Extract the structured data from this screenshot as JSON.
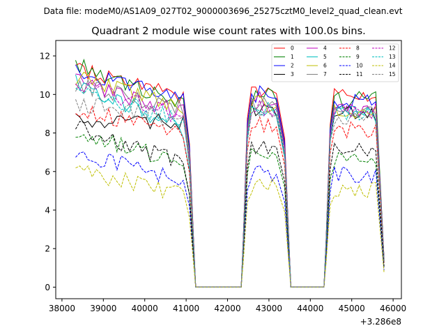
{
  "chart_data": {
    "type": "line",
    "suptitle": "Data file: modeM0/AS1A09_027T02_9000003696_25275cztM0_level2_quad_clean.evt",
    "title": "Quadrant 2 module wise count rates with 100.0s bins.",
    "xlabel": "",
    "ylabel": "",
    "x_offset_label": "+3.286e8",
    "xlim": [
      37850,
      46200
    ],
    "ylim": [
      -0.6,
      12.8
    ],
    "x_ticks": [
      38000,
      39000,
      40000,
      41000,
      42000,
      43000,
      44000,
      45000,
      46000
    ],
    "x_tick_labels": [
      "38000",
      "39000",
      "40000",
      "41000",
      "42000",
      "43000",
      "44000",
      "45000",
      "46000"
    ],
    "y_ticks": [
      0,
      2,
      4,
      6,
      8,
      10,
      12
    ],
    "y_tick_labels": [
      "0",
      "2",
      "4",
      "6",
      "8",
      "10",
      "12"
    ],
    "legend_position": "top-right",
    "segments": [
      [
        38330,
        41230
      ],
      [
        42330,
        43530
      ],
      [
        44330,
        45830
      ]
    ],
    "gaps": [
      [
        41230,
        42330
      ],
      [
        43530,
        44330
      ]
    ],
    "series": [
      {
        "name": "0",
        "color": "#ff0000",
        "dash": "solid",
        "level": [
          11.4,
          9.9
        ],
        "seg2": 10.3,
        "seg3": 9.9
      },
      {
        "name": "1",
        "color": "#008000",
        "dash": "solid",
        "level": [
          11.6,
          9.5
        ],
        "seg2": 9.9,
        "seg3": 9.7
      },
      {
        "name": "2",
        "color": "#0000ff",
        "dash": "solid",
        "level": [
          11.3,
          9.7
        ],
        "seg2": 10.0,
        "seg3": 9.6
      },
      {
        "name": "3",
        "color": "#000000",
        "dash": "solid",
        "level": [
          8.7,
          8.5
        ],
        "seg2": 9.1,
        "seg3": 9.0
      },
      {
        "name": "4",
        "color": "#bf00bf",
        "dash": "solid",
        "level": [
          10.7,
          9.0
        ],
        "seg2": 9.7,
        "seg3": 9.3
      },
      {
        "name": "5",
        "color": "#00bfbf",
        "dash": "solid",
        "level": [
          10.6,
          8.1
        ],
        "seg2": 9.0,
        "seg3": 8.9
      },
      {
        "name": "6",
        "color": "#bfbf00",
        "dash": "solid",
        "level": [
          10.9,
          9.3
        ],
        "seg2": 9.5,
        "seg3": 9.2
      },
      {
        "name": "7",
        "color": "#808080",
        "dash": "solid",
        "level": [
          10.5,
          9.2
        ],
        "seg2": 9.5,
        "seg3": 9.2
      },
      {
        "name": "8",
        "color": "#ff0000",
        "dash": "dashed",
        "level": [
          9.3,
          7.9
        ],
        "seg2": 8.4,
        "seg3": 8.2
      },
      {
        "name": "9",
        "color": "#008000",
        "dash": "dashed",
        "level": [
          8.0,
          6.4
        ],
        "seg2": 6.9,
        "seg3": 6.6
      },
      {
        "name": "10",
        "color": "#0000ff",
        "dash": "dashed",
        "level": [
          6.9,
          5.6
        ],
        "seg2": 5.9,
        "seg3": 5.8
      },
      {
        "name": "11",
        "color": "#000000",
        "dash": "dashed",
        "level": [
          8.3,
          6.4
        ],
        "seg2": 7.3,
        "seg3": 7.2
      },
      {
        "name": "12",
        "color": "#bf00bf",
        "dash": "dashed",
        "level": [
          10.6,
          8.8
        ],
        "seg2": 9.3,
        "seg3": 9.2
      },
      {
        "name": "13",
        "color": "#00bfbf",
        "dash": "dashed",
        "level": [
          10.3,
          8.6
        ],
        "seg2": 9.2,
        "seg3": 9.0
      },
      {
        "name": "14",
        "color": "#bfbf00",
        "dash": "dashed",
        "level": [
          6.1,
          4.8
        ],
        "seg2": 5.2,
        "seg3": 5.0
      },
      {
        "name": "15",
        "color": "#808080",
        "dash": "dashed",
        "level": [
          9.6,
          8.6
        ],
        "seg2": 8.9,
        "seg3": 8.9
      }
    ]
  }
}
